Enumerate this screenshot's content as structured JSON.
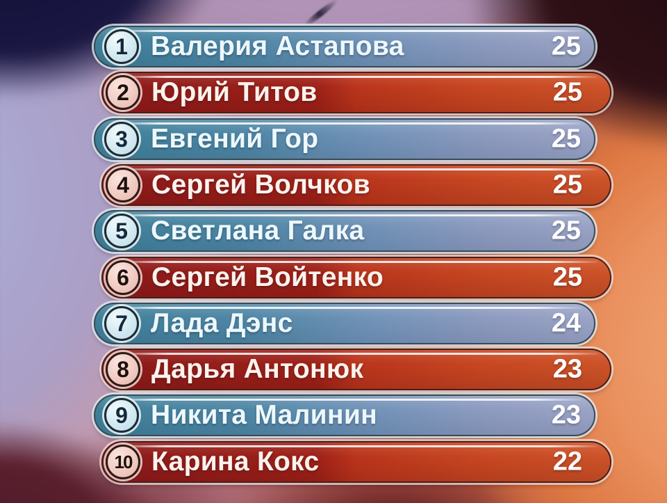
{
  "scoreboard": {
    "rows": [
      {
        "rank": "1",
        "name": "Валерия Астапова",
        "score": "25",
        "variant": "blue"
      },
      {
        "rank": "2",
        "name": "Юрий Титов",
        "score": "25",
        "variant": "red"
      },
      {
        "rank": "3",
        "name": "Евгений Гор",
        "score": "25",
        "variant": "blue"
      },
      {
        "rank": "4",
        "name": "Сергей Волчков",
        "score": "25",
        "variant": "red"
      },
      {
        "rank": "5",
        "name": "Светлана Галка",
        "score": "25",
        "variant": "blue"
      },
      {
        "rank": "6",
        "name": "Сергей Войтенко",
        "score": "25",
        "variant": "red"
      },
      {
        "rank": "7",
        "name": "Лада Дэнс",
        "score": "24",
        "variant": "blue"
      },
      {
        "rank": "8",
        "name": "Дарья Антонюк",
        "score": "23",
        "variant": "red"
      },
      {
        "rank": "9",
        "name": "Никита Малинин",
        "score": "23",
        "variant": "blue"
      },
      {
        "rank": "10",
        "name": "Карина Кокс",
        "score": "22",
        "variant": "red"
      }
    ]
  },
  "palette": {
    "blue_row_gradient_start": "#3f8099",
    "blue_row_gradient_end": "#9ba4c6",
    "red_row_gradient_start": "#8c1a1b",
    "red_row_gradient_end": "#cd5328",
    "blue_badge_fill": "#d8ecf3",
    "red_badge_fill": "#f3d0c7",
    "blue_badge_text": "#13293c",
    "red_badge_text": "#1e100d",
    "name_text": "#f2f9fc",
    "score_text": "#ffffff"
  }
}
